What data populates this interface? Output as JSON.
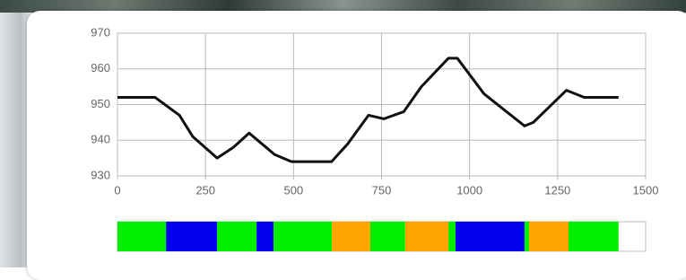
{
  "chart_data": [
    {
      "type": "line",
      "color": "#111111",
      "x": [
        0,
        107,
        176,
        214,
        283,
        329,
        374,
        446,
        494,
        608,
        654,
        713,
        757,
        813,
        863,
        940,
        965,
        1041,
        1156,
        1181,
        1275,
        1326,
        1423
      ],
      "values": [
        952,
        952,
        947,
        941,
        935,
        938,
        942,
        936,
        934,
        934,
        939,
        947,
        946,
        948,
        955,
        963,
        963,
        953,
        944,
        945,
        954,
        952,
        952
      ],
      "xlim": [
        0,
        1500
      ],
      "xticks": [
        0,
        250,
        500,
        750,
        1000,
        1250,
        1500
      ],
      "ylim": [
        930,
        970
      ],
      "yticks": [
        930,
        940,
        950,
        960,
        970
      ],
      "grid": true
    },
    {
      "type": "strip",
      "xlim": [
        0,
        1500
      ],
      "segments": [
        {
          "start": 0,
          "end": 138,
          "color": "#00ee00"
        },
        {
          "start": 138,
          "end": 283,
          "color": "#0000ee"
        },
        {
          "start": 283,
          "end": 395,
          "color": "#00ee00"
        },
        {
          "start": 395,
          "end": 443,
          "color": "#0000ee"
        },
        {
          "start": 443,
          "end": 609,
          "color": "#00ee00"
        },
        {
          "start": 609,
          "end": 718,
          "color": "#ffa500"
        },
        {
          "start": 718,
          "end": 817,
          "color": "#00ee00"
        },
        {
          "start": 817,
          "end": 940,
          "color": "#ffa500"
        },
        {
          "start": 940,
          "end": 960,
          "color": "#00ee00"
        },
        {
          "start": 960,
          "end": 1156,
          "color": "#0000ee"
        },
        {
          "start": 1156,
          "end": 1169,
          "color": "#00ee00"
        },
        {
          "start": 1169,
          "end": 1281,
          "color": "#ffa500"
        },
        {
          "start": 1281,
          "end": 1423,
          "color": "#00ee00"
        }
      ]
    }
  ]
}
